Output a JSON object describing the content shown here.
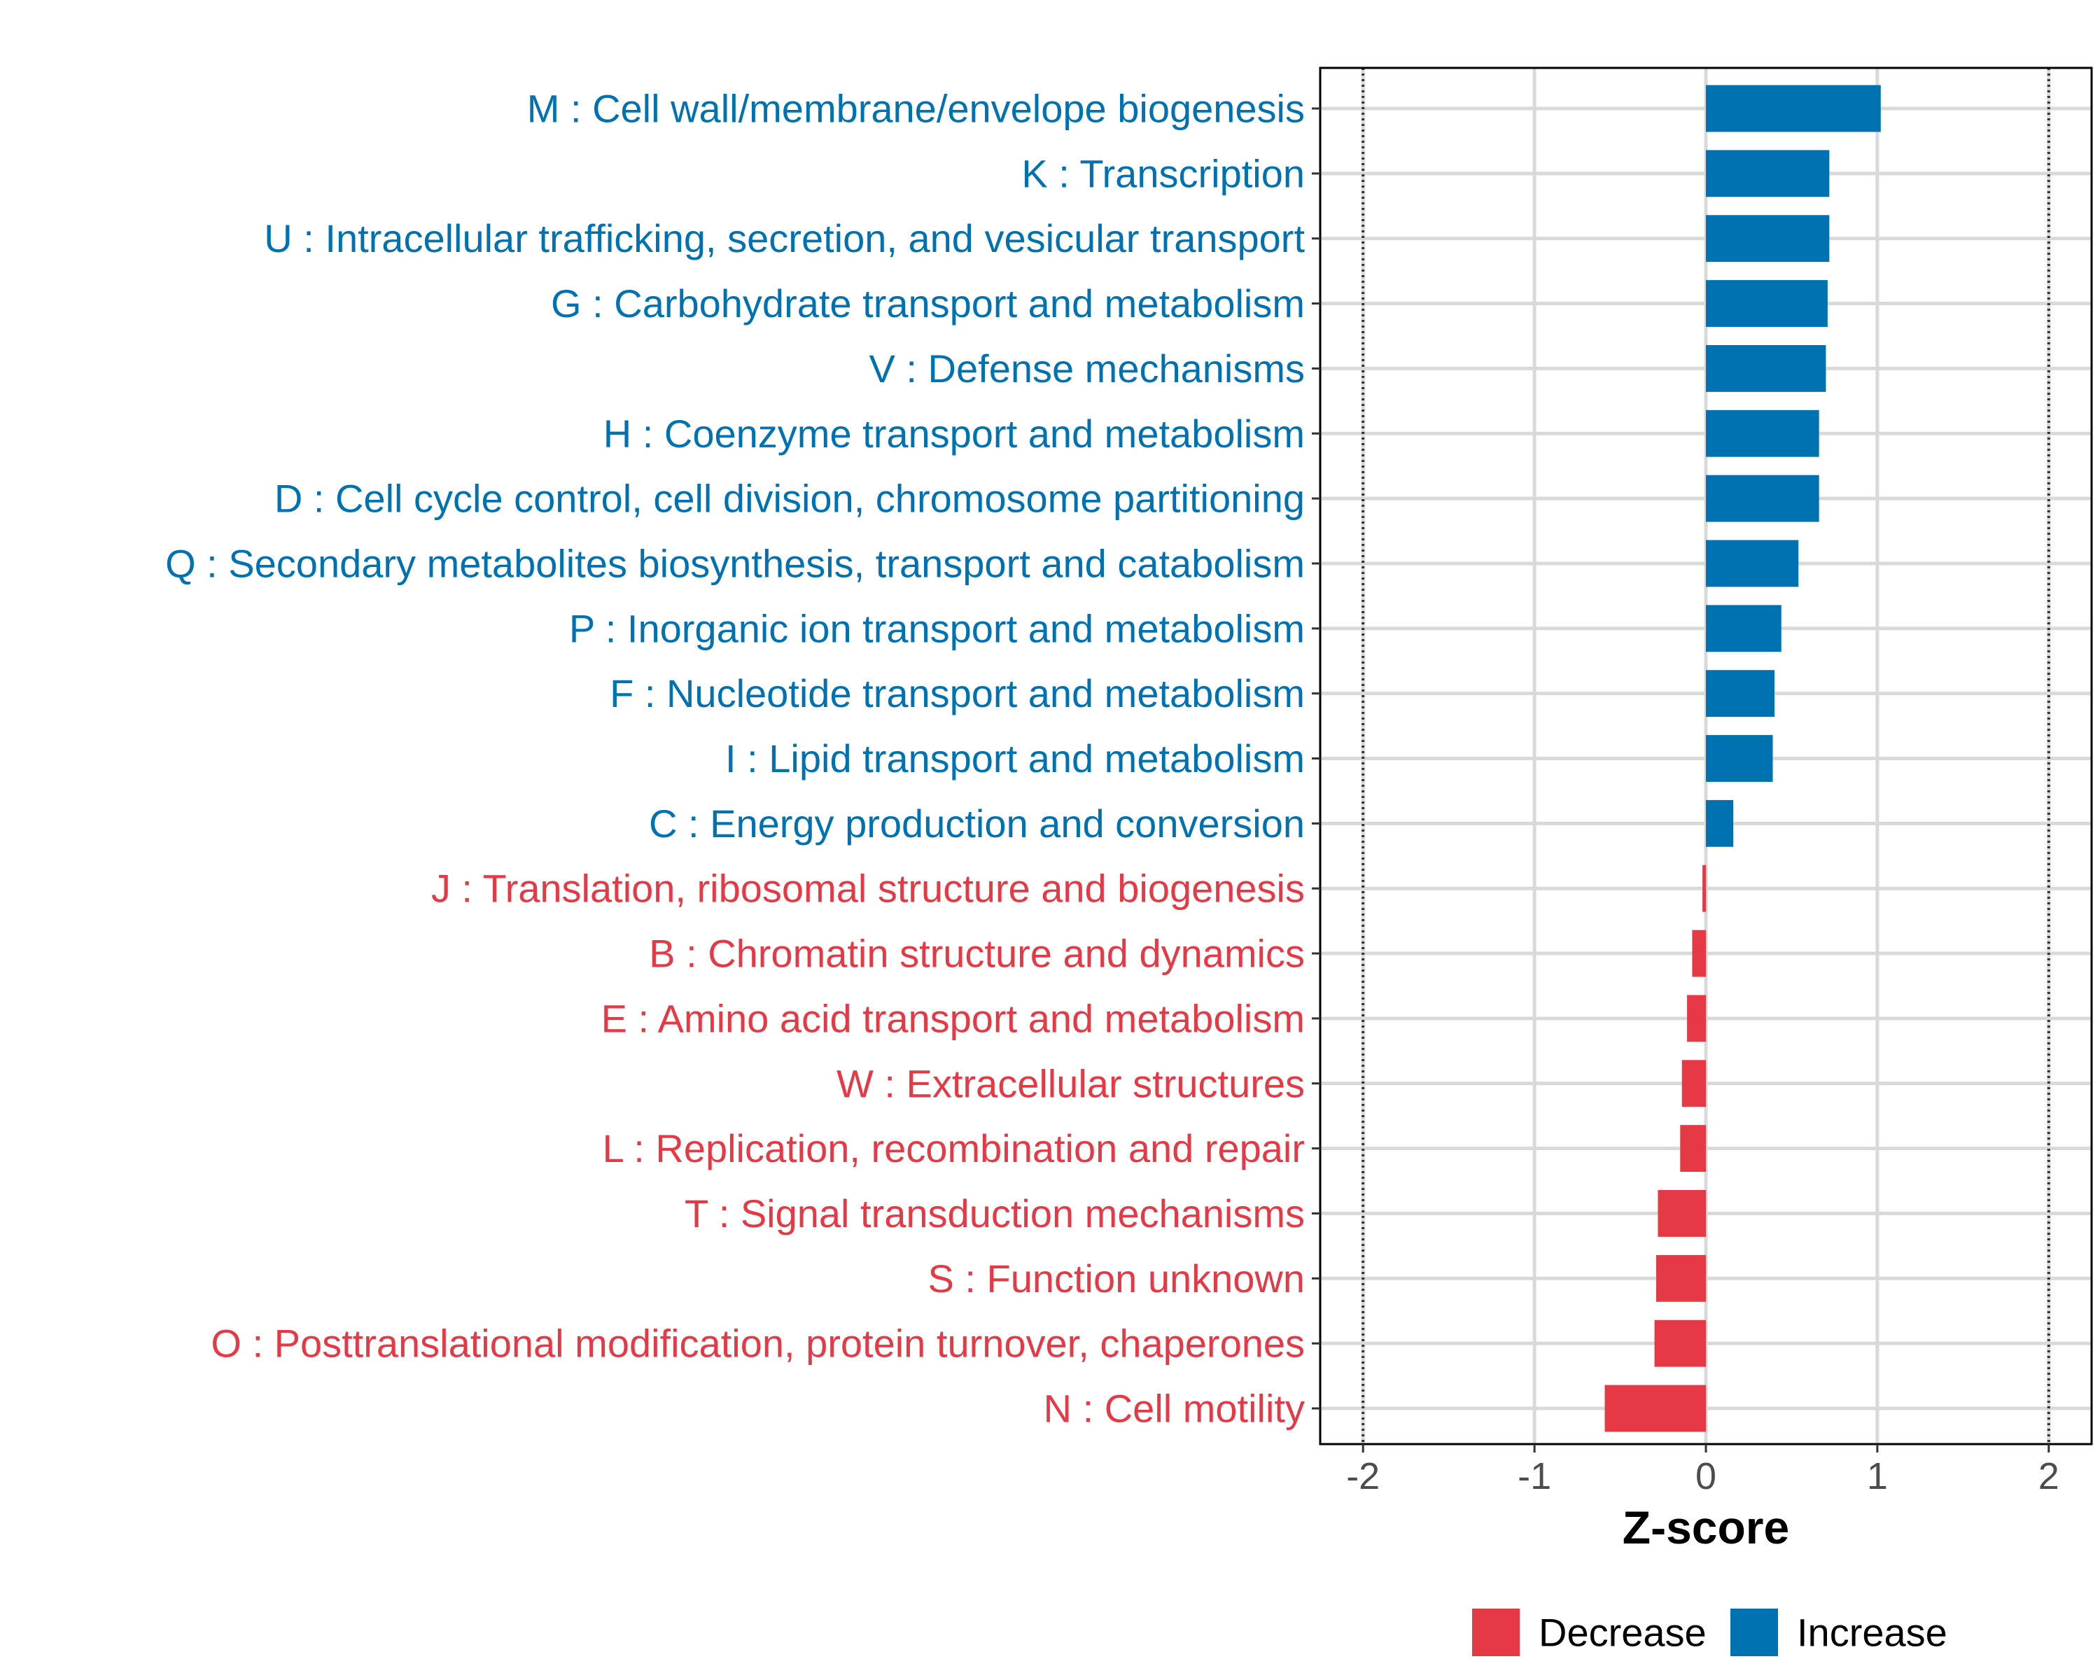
{
  "chart_data": {
    "type": "bar",
    "orientation": "horizontal",
    "title": "",
    "xlabel": "Z-score",
    "ylabel": "",
    "xlim": [
      -2.25,
      2.25
    ],
    "xticks": [
      -2,
      -1,
      0,
      1,
      2
    ],
    "xtick_labels": [
      "-2",
      "-1",
      "0",
      "1",
      "2"
    ],
    "reference_lines": [
      -2,
      2
    ],
    "grid": true,
    "colors": {
      "Increase": "#0072b2",
      "Decrease": "#e63946"
    },
    "legend": {
      "placement": "bottom",
      "entries": [
        "Decrease",
        "Increase"
      ]
    },
    "categories": [
      "M : Cell wall/membrane/envelope biogenesis",
      "K : Transcription",
      "U : Intracellular trafficking, secretion, and vesicular transport",
      "G : Carbohydrate transport and metabolism",
      "V : Defense mechanisms",
      "H : Coenzyme transport and metabolism",
      "D : Cell cycle control, cell division, chromosome partitioning",
      "Q : Secondary metabolites biosynthesis, transport and catabolism",
      "P : Inorganic ion transport and metabolism",
      "F : Nucleotide transport and metabolism",
      "I : Lipid transport and metabolism",
      "C : Energy production and conversion",
      "J : Translation, ribosomal structure and biogenesis",
      "B : Chromatin structure and dynamics",
      "E : Amino acid transport and metabolism",
      "W : Extracellular structures",
      "L : Replication, recombination and repair",
      "T : Signal transduction mechanisms",
      "S : Function unknown",
      "O : Posttranslational modification, protein turnover, chaperones",
      "N : Cell motility"
    ],
    "values": [
      1.02,
      0.72,
      0.72,
      0.71,
      0.7,
      0.66,
      0.66,
      0.54,
      0.44,
      0.4,
      0.39,
      0.16,
      -0.02,
      -0.08,
      -0.11,
      -0.14,
      -0.15,
      -0.28,
      -0.29,
      -0.3,
      -0.59
    ],
    "groups": [
      "Increase",
      "Increase",
      "Increase",
      "Increase",
      "Increase",
      "Increase",
      "Increase",
      "Increase",
      "Increase",
      "Increase",
      "Increase",
      "Increase",
      "Decrease",
      "Decrease",
      "Decrease",
      "Decrease",
      "Decrease",
      "Decrease",
      "Decrease",
      "Decrease",
      "Decrease"
    ]
  }
}
